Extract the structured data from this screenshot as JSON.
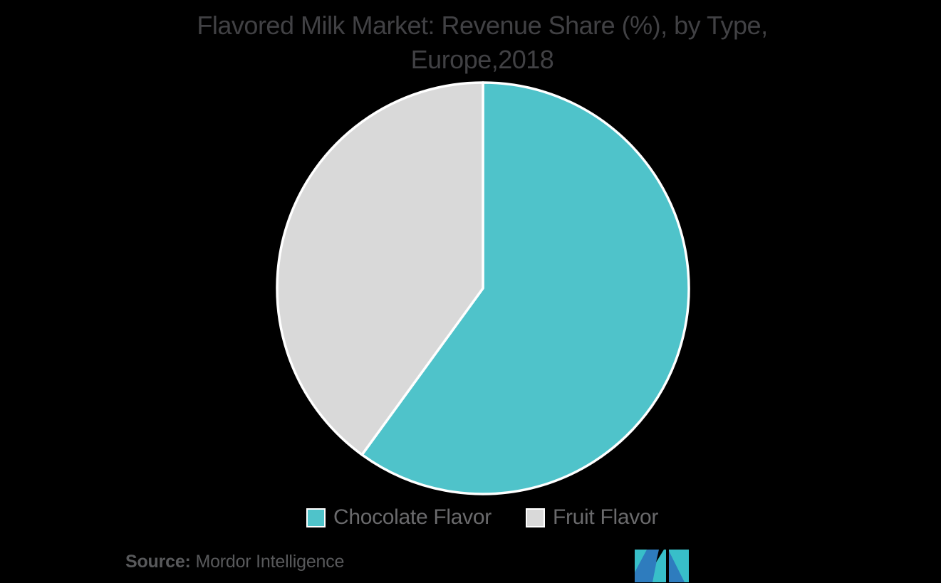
{
  "title": {
    "line1": "Flavored Milk Market: Revenue Share (%), by Type,",
    "line2": "Europe,2018"
  },
  "chart_data": {
    "type": "pie",
    "title": "Flavored Milk Market: Revenue Share (%), by Type, Europe,2018",
    "series": [
      {
        "name": "Chocolate Flavor",
        "value": 60,
        "color": "#4fc3ca"
      },
      {
        "name": "Fruit Flavor",
        "value": 40,
        "color": "#d9d9d9"
      }
    ],
    "values_are_percent": true,
    "values_estimated_from_pixels": true,
    "start_angle_deg": 0,
    "direction": "clockwise",
    "slice_border_color": "#ffffff",
    "legend_position": "bottom",
    "background_color": "#000000"
  },
  "legend": {
    "items": [
      {
        "label": "Chocolate Flavor"
      },
      {
        "label": "Fruit Flavor"
      }
    ]
  },
  "source": {
    "label": "Source:",
    "name": "Mordor Intelligence"
  },
  "logo": {
    "name": "mordor-intelligence-logo",
    "teal": "#38bfc9",
    "blue": "#2e7cbe",
    "notch": "#000000"
  },
  "colors": {
    "background": "#000000",
    "title_text": "#414144",
    "legend_text": "#6a6a6c",
    "source_text": "#58595b"
  }
}
